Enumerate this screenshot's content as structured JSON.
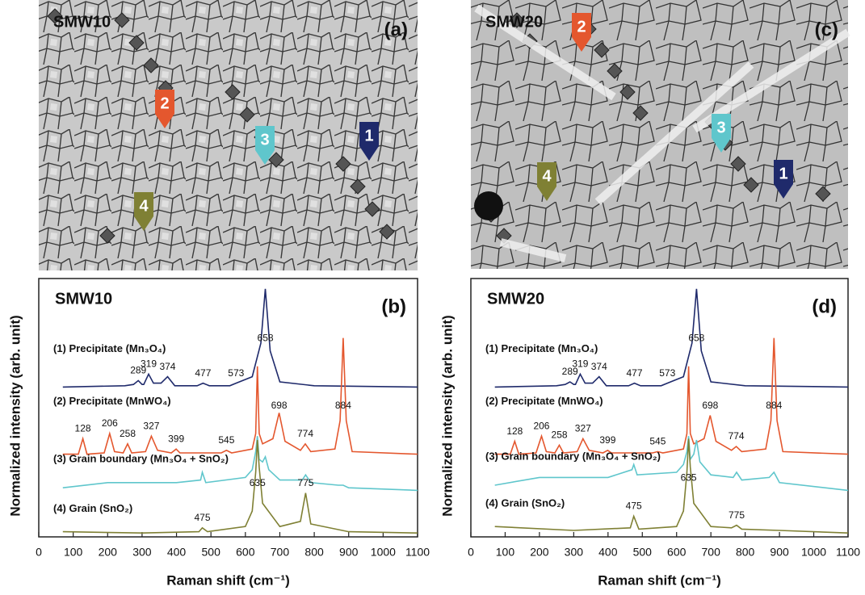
{
  "micrographs": [
    {
      "sample": "SMW10",
      "panel": "(a)",
      "markers": [
        "1",
        "2",
        "3",
        "4"
      ]
    },
    {
      "sample": "SMW20",
      "panel": "(c)",
      "markers": [
        "1",
        "2",
        "3",
        "4"
      ]
    }
  ],
  "chart_data": [
    {
      "type": "line",
      "title": "SMW10",
      "panel": "(b)",
      "x_label": "Raman shift (cm⁻¹)",
      "y_label": "Normalized intensity (arb. unit)",
      "xlim": [
        0,
        1100
      ],
      "xticks": [
        0,
        100,
        200,
        300,
        400,
        500,
        600,
        700,
        800,
        900,
        1000,
        1100
      ],
      "ylim": [
        0,
        10
      ],
      "series": [
        {
          "name": "(1) Precipitate (Mn₃O₄)",
          "color": "#1f2a6b",
          "x": [
            70,
            250,
            275,
            289,
            300,
            305,
            319,
            333,
            355,
            374,
            395,
            460,
            477,
            495,
            555,
            573,
            620,
            645,
            658,
            672,
            700,
            800,
            1100
          ],
          "values": [
            5.8,
            5.85,
            5.9,
            6.05,
            5.9,
            5.9,
            6.3,
            5.95,
            5.95,
            6.2,
            5.85,
            5.85,
            5.95,
            5.85,
            5.85,
            5.95,
            6.2,
            7.5,
            9.6,
            7.2,
            6.0,
            5.85,
            5.8
          ],
          "peak_labels": [
            289,
            319,
            374,
            477,
            573,
            658
          ]
        },
        {
          "name": "(2) Precipitate (MnWO₄)",
          "color": "#e4572e",
          "x": [
            70,
            115,
            128,
            140,
            190,
            206,
            220,
            245,
            258,
            270,
            310,
            327,
            345,
            385,
            399,
            410,
            530,
            545,
            560,
            620,
            630,
            635,
            640,
            650,
            680,
            698,
            715,
            760,
            774,
            790,
            860,
            875,
            884,
            893,
            910,
            1100
          ],
          "values": [
            3.2,
            3.2,
            3.8,
            3.2,
            3.25,
            4.0,
            3.3,
            3.25,
            3.6,
            3.25,
            3.3,
            3.9,
            3.35,
            3.25,
            3.4,
            3.25,
            3.25,
            3.35,
            3.25,
            3.4,
            4.0,
            6.6,
            4.0,
            3.6,
            3.8,
            4.8,
            3.7,
            3.35,
            3.6,
            3.3,
            3.4,
            4.5,
            7.7,
            4.5,
            3.3,
            3.2
          ],
          "peak_labels": [
            128,
            206,
            258,
            327,
            399,
            545,
            698,
            774,
            884
          ]
        },
        {
          "name": "(3) Grain boundary (Mn₃O₄ + SnO₂)",
          "color": "#5fc6cc",
          "x": [
            70,
            200,
            400,
            470,
            475,
            485,
            600,
            620,
            630,
            635,
            640,
            650,
            658,
            668,
            700,
            765,
            775,
            790,
            870,
            884,
            900,
            1100
          ],
          "values": [
            1.9,
            2.1,
            2.1,
            2.2,
            2.5,
            2.1,
            2.3,
            2.6,
            3.3,
            3.9,
            3.0,
            2.9,
            3.1,
            2.6,
            2.2,
            2.2,
            2.4,
            2.1,
            2.0,
            2.0,
            1.9,
            1.8
          ],
          "peak_labels": []
        },
        {
          "name": "(4) Grain (SnO₂)",
          "color": "#7f8034",
          "x": [
            70,
            300,
            465,
            475,
            490,
            600,
            620,
            630,
            635,
            640,
            650,
            700,
            760,
            775,
            790,
            900,
            1100
          ],
          "values": [
            0.2,
            0.15,
            0.2,
            0.35,
            0.2,
            0.4,
            1.0,
            2.5,
            3.75,
            2.7,
            1.3,
            0.4,
            0.6,
            1.7,
            0.5,
            0.2,
            0.15
          ],
          "peak_labels": [
            475,
            635,
            775
          ]
        }
      ]
    },
    {
      "type": "line",
      "title": "SMW20",
      "panel": "(d)",
      "x_label": "Raman shift (cm⁻¹)",
      "y_label": "Normalized intensity (arb. unit)",
      "xlim": [
        0,
        1100
      ],
      "xticks": [
        0,
        100,
        200,
        300,
        400,
        500,
        600,
        700,
        800,
        900,
        1000,
        1100
      ],
      "ylim": [
        0,
        10
      ],
      "series": [
        {
          "name": "(1) Precipitate (Mn₃O₄)",
          "color": "#1f2a6b",
          "x": [
            70,
            250,
            275,
            289,
            300,
            305,
            319,
            333,
            355,
            374,
            395,
            460,
            477,
            495,
            555,
            573,
            620,
            645,
            658,
            672,
            700,
            800,
            1100
          ],
          "values": [
            5.8,
            5.85,
            5.9,
            6.0,
            5.9,
            5.9,
            6.3,
            5.95,
            5.95,
            6.2,
            5.85,
            5.85,
            5.95,
            5.85,
            5.85,
            5.95,
            6.2,
            7.5,
            9.6,
            7.2,
            6.0,
            5.85,
            5.8
          ],
          "peak_labels": [
            289,
            319,
            374,
            477,
            573,
            658
          ]
        },
        {
          "name": "(2) Precipitate (MnWO₄)",
          "color": "#e4572e",
          "x": [
            70,
            115,
            128,
            140,
            190,
            206,
            220,
            245,
            258,
            270,
            310,
            327,
            345,
            385,
            399,
            410,
            530,
            545,
            560,
            620,
            630,
            635,
            640,
            650,
            680,
            698,
            715,
            760,
            774,
            790,
            860,
            875,
            884,
            893,
            910,
            1100
          ],
          "values": [
            3.2,
            3.2,
            3.7,
            3.2,
            3.25,
            3.9,
            3.3,
            3.25,
            3.55,
            3.25,
            3.3,
            3.8,
            3.35,
            3.25,
            3.35,
            3.25,
            3.25,
            3.3,
            3.25,
            3.4,
            4.0,
            6.6,
            4.0,
            3.6,
            3.8,
            4.7,
            3.7,
            3.35,
            3.5,
            3.3,
            3.4,
            4.5,
            7.7,
            4.5,
            3.3,
            3.2
          ],
          "peak_labels": [
            128,
            206,
            258,
            327,
            399,
            545,
            698,
            774,
            884
          ]
        },
        {
          "name": "(3) Grain boundary (Mn₃O₄ + SnO₂)",
          "color": "#5fc6cc",
          "x": [
            70,
            200,
            400,
            470,
            475,
            485,
            600,
            620,
            630,
            635,
            640,
            650,
            658,
            668,
            700,
            765,
            775,
            790,
            870,
            884,
            900,
            1100
          ],
          "values": [
            2.0,
            2.3,
            2.3,
            2.6,
            2.8,
            2.4,
            2.5,
            2.8,
            3.3,
            3.9,
            3.0,
            3.2,
            3.75,
            2.9,
            2.4,
            2.3,
            2.5,
            2.2,
            2.3,
            2.5,
            2.1,
            1.8
          ],
          "peak_labels": []
        },
        {
          "name": "(4) Grain (SnO₂)",
          "color": "#7f8034",
          "x": [
            70,
            300,
            465,
            475,
            490,
            600,
            620,
            630,
            635,
            640,
            650,
            700,
            760,
            775,
            790,
            900,
            1100
          ],
          "values": [
            0.4,
            0.25,
            0.35,
            0.8,
            0.3,
            0.4,
            1.0,
            2.5,
            3.8,
            2.7,
            1.3,
            0.4,
            0.35,
            0.45,
            0.3,
            0.25,
            0.15
          ],
          "peak_labels": [
            475,
            635,
            775
          ]
        }
      ]
    }
  ]
}
